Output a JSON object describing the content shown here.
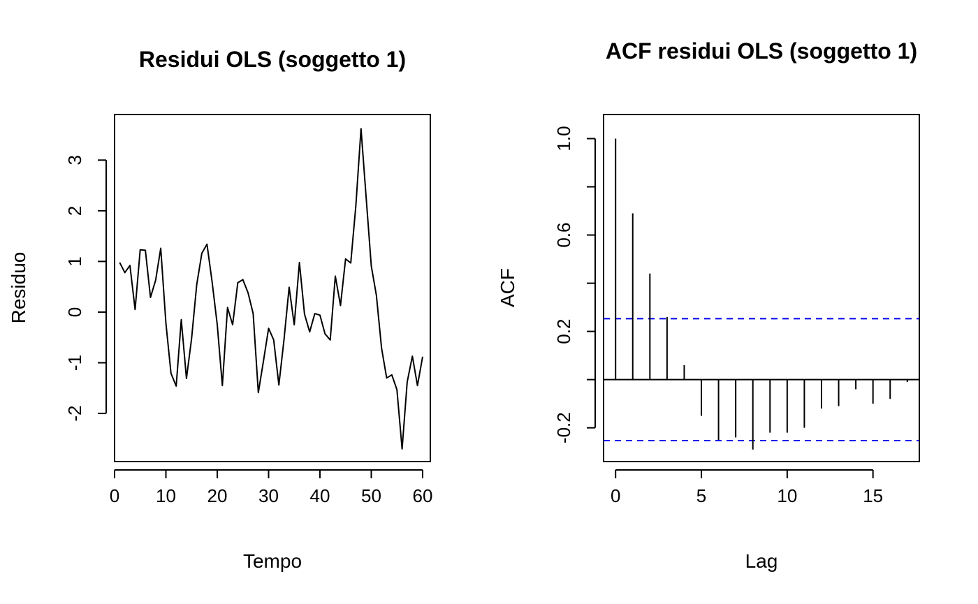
{
  "chart_data": [
    {
      "type": "line",
      "title": "Residui OLS (soggetto 1)",
      "xlabel": "Tempo",
      "ylabel": "Residuo",
      "xlim": [
        0,
        61.5
      ],
      "ylim": [
        -2.95,
        3.9
      ],
      "xticks": [
        0,
        10,
        20,
        30,
        40,
        50,
        60
      ],
      "yticks": [
        -2,
        -1,
        0,
        1,
        2,
        3
      ],
      "grid": false,
      "series": [
        {
          "color": "#000000",
          "x": [
            1,
            2,
            3,
            4,
            5,
            6,
            7,
            8,
            9,
            10,
            11,
            12,
            13,
            14,
            15,
            16,
            17,
            18,
            19,
            20,
            21,
            22,
            23,
            24,
            25,
            26,
            27,
            28,
            29,
            30,
            31,
            32,
            33,
            34,
            35,
            36,
            37,
            38,
            39,
            40,
            41,
            42,
            43,
            44,
            45,
            46,
            47,
            48,
            49,
            50,
            51,
            52,
            53,
            54,
            55,
            56,
            57,
            58,
            59,
            60
          ],
          "y": [
            0.98,
            0.78,
            0.92,
            0.05,
            1.23,
            1.22,
            0.29,
            0.63,
            1.26,
            -0.22,
            -1.21,
            -1.46,
            -0.15,
            -1.31,
            -0.53,
            0.54,
            1.16,
            1.34,
            0.6,
            -0.25,
            -1.45,
            0.09,
            -0.25,
            0.58,
            0.64,
            0.38,
            -0.03,
            -1.59,
            -0.97,
            -0.32,
            -0.55,
            -1.44,
            -0.55,
            0.49,
            -0.25,
            0.98,
            -0.04,
            -0.39,
            -0.03,
            -0.06,
            -0.43,
            -0.55,
            0.71,
            0.13,
            1.05,
            0.97,
            2.1,
            3.62,
            2.27,
            0.91,
            0.33,
            -0.71,
            -1.3,
            -1.24,
            -1.53,
            -2.7,
            -1.38,
            -0.87,
            -1.45,
            -0.88
          ]
        }
      ]
    },
    {
      "type": "bar",
      "title": "ACF residui OLS (soggetto 1)",
      "xlabel": "Lag",
      "ylabel": "ACF",
      "xlim": [
        -0.7,
        17.7
      ],
      "ylim": [
        -0.34,
        1.1
      ],
      "xticks": [
        0,
        5,
        10,
        15
      ],
      "yticks": [
        -0.2,
        0.2,
        0.6,
        1.0
      ],
      "ytick_labels": [
        "-0.2",
        "0.2",
        "0.6",
        "1.0"
      ],
      "yticks_minor": [
        0.0,
        0.4,
        0.8
      ],
      "grid": false,
      "lags": [
        0,
        1,
        2,
        3,
        4,
        5,
        6,
        7,
        8,
        9,
        10,
        11,
        12,
        13,
        14,
        15,
        16,
        17
      ],
      "acf": [
        1.0,
        0.69,
        0.44,
        0.26,
        0.06,
        -0.15,
        -0.25,
        -0.24,
        -0.29,
        -0.22,
        -0.22,
        -0.2,
        -0.12,
        -0.11,
        -0.04,
        -0.1,
        -0.08,
        -0.01
      ],
      "confidence_bound": 0.253,
      "colors": {
        "spikes": "#000000",
        "zero_line": "#000000",
        "confidence": "#0000ee"
      }
    }
  ]
}
